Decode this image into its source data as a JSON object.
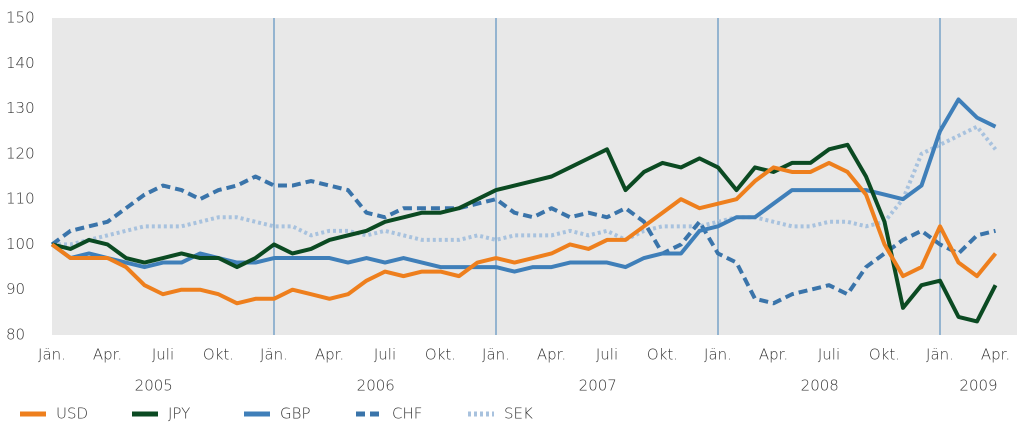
{
  "chart_data": {
    "type": "line",
    "categories": [
      "Jän.",
      null,
      null,
      "Apr.",
      null,
      null,
      "Juli",
      null,
      null,
      "Okt.",
      null,
      null,
      "Jän.",
      null,
      null,
      "Apr.",
      null,
      null,
      "Juli",
      null,
      null,
      "Okt.",
      null,
      null,
      "Jän.",
      null,
      null,
      "Apr.",
      null,
      null,
      "Juli",
      null,
      null,
      "Okt.",
      null,
      null,
      "Jän.",
      null,
      null,
      "Apr.",
      null,
      null,
      "Juli",
      null,
      null,
      "Okt.",
      null,
      null,
      "Jän.",
      null,
      null,
      "Apr."
    ],
    "years": [
      "2005",
      "2006",
      "2007",
      "2008",
      "2009"
    ],
    "ylim": [
      80,
      150
    ],
    "yticks": [
      80,
      90,
      100,
      110,
      120,
      130,
      140,
      150
    ],
    "series": [
      {
        "name": "USD",
        "color": "#ee7f1d",
        "dash": "solid",
        "values": [
          100,
          97,
          97,
          97,
          95,
          91,
          89,
          90,
          90,
          89,
          87,
          88,
          88,
          90,
          89,
          88,
          89,
          92,
          94,
          93,
          94,
          94,
          93,
          96,
          97,
          96,
          97,
          98,
          100,
          99,
          101,
          101,
          104,
          107,
          110,
          108,
          109,
          110,
          114,
          117,
          116,
          116,
          118,
          116,
          111,
          100,
          93,
          95,
          104,
          96,
          93,
          98
        ]
      },
      {
        "name": "JPY",
        "color": "#0b4a22",
        "dash": "solid",
        "values": [
          100,
          99,
          101,
          100,
          97,
          96,
          97,
          98,
          97,
          97,
          95,
          97,
          100,
          98,
          99,
          101,
          102,
          103,
          105,
          106,
          107,
          107,
          108,
          110,
          112,
          113,
          114,
          115,
          117,
          119,
          121,
          112,
          116,
          118,
          117,
          119,
          117,
          112,
          117,
          116,
          118,
          118,
          121,
          122,
          115,
          105,
          86,
          91,
          92,
          84,
          83,
          91
        ]
      },
      {
        "name": "GBP",
        "color": "#3f7fb9",
        "dash": "solid",
        "values": [
          100,
          97,
          98,
          97,
          96,
          95,
          96,
          96,
          98,
          97,
          96,
          96,
          97,
          97,
          97,
          97,
          96,
          97,
          96,
          97,
          96,
          95,
          95,
          95,
          95,
          94,
          95,
          95,
          96,
          96,
          96,
          95,
          97,
          98,
          98,
          103,
          104,
          106,
          106,
          109,
          112,
          112,
          112,
          112,
          112,
          111,
          110,
          113,
          125,
          132,
          128,
          126
        ]
      },
      {
        "name": "CHF",
        "color": "#3a74aa",
        "dash": "dashed",
        "values": [
          100,
          103,
          104,
          105,
          108,
          111,
          113,
          112,
          110,
          112,
          113,
          115,
          113,
          113,
          114,
          113,
          112,
          107,
          106,
          108,
          108,
          108,
          108,
          109,
          110,
          107,
          106,
          108,
          106,
          107,
          106,
          108,
          105,
          98,
          100,
          105,
          98,
          96,
          88,
          87,
          89,
          90,
          91,
          89,
          95,
          98,
          101,
          103,
          100,
          98,
          102,
          103
        ]
      },
      {
        "name": "SEK",
        "color": "#a8c2de",
        "dash": "dotted",
        "values": [
          100,
          100,
          101,
          102,
          103,
          104,
          104,
          104,
          105,
          106,
          106,
          105,
          104,
          104,
          102,
          103,
          103,
          102,
          103,
          102,
          101,
          101,
          101,
          102,
          101,
          102,
          102,
          102,
          103,
          102,
          103,
          101,
          103,
          104,
          104,
          104,
          105,
          106,
          106,
          105,
          104,
          104,
          105,
          105,
          104,
          105,
          110,
          120,
          122,
          124,
          126,
          121
        ]
      }
    ]
  }
}
